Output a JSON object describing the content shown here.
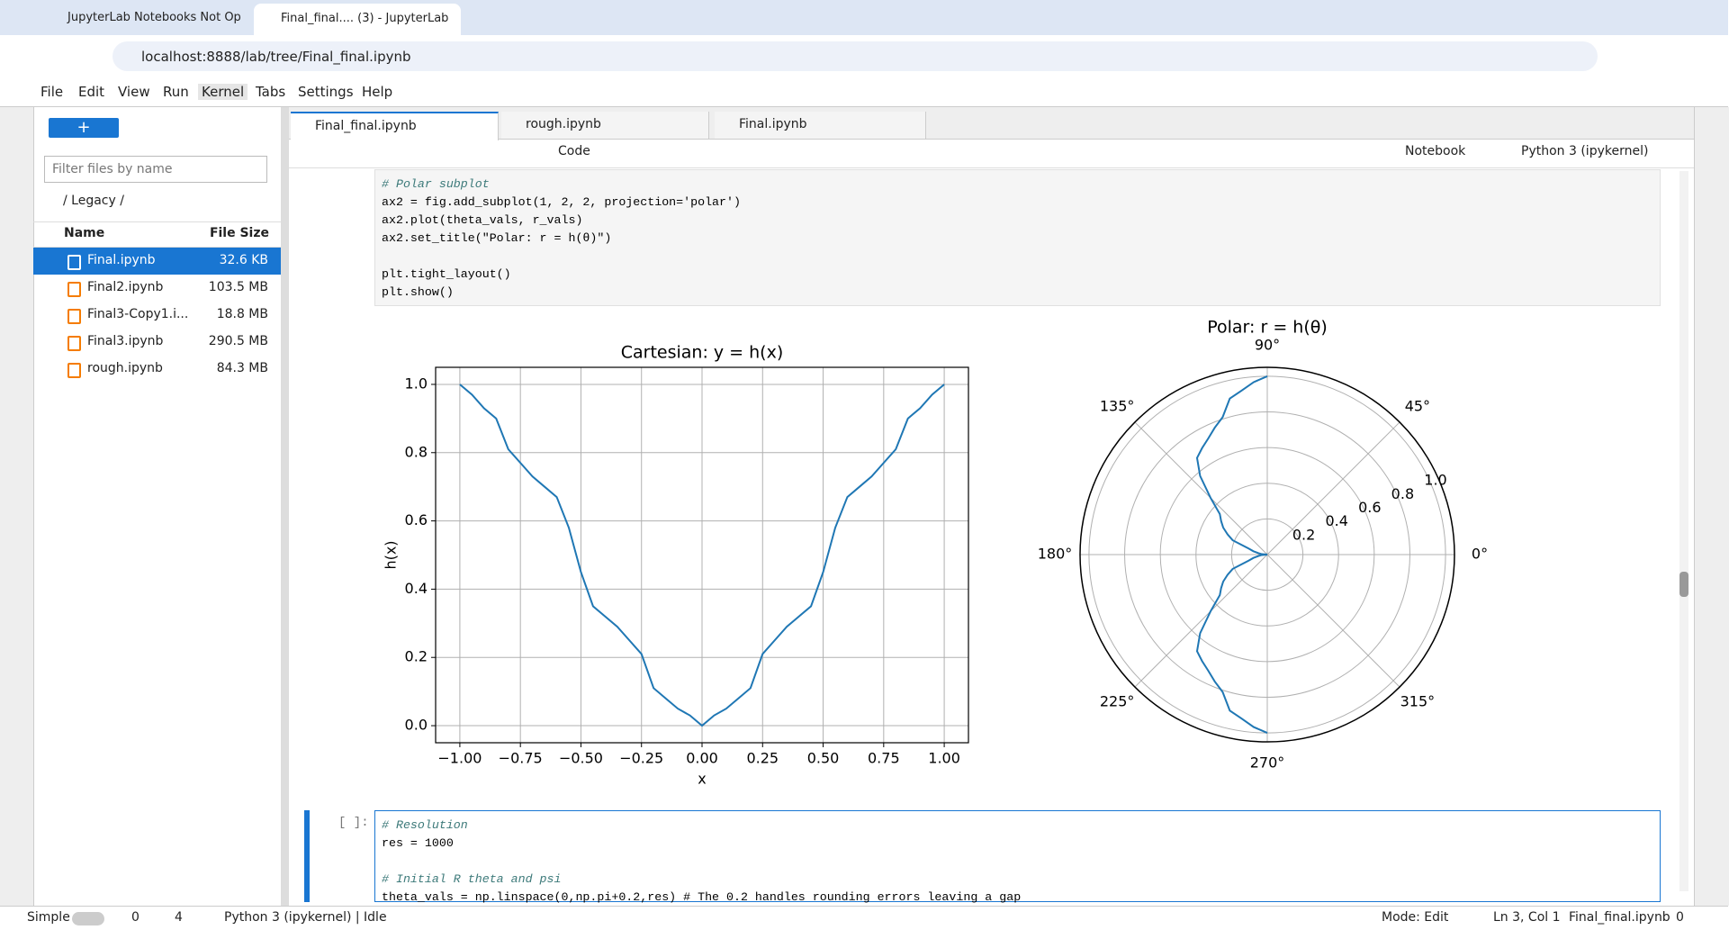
{
  "browser": {
    "tabs": [
      "JupyterLab Notebooks Not Op",
      "Final_final.... (3) - JupyterLab"
    ],
    "url": "localhost:8888/lab/tree/Final_final.ipynb"
  },
  "menu": [
    "File",
    "Edit",
    "View",
    "Run",
    "Kernel",
    "Tabs",
    "Settings",
    "Help"
  ],
  "file_browser": {
    "filter_placeholder": "Filter files by name",
    "breadcrumb": "/ Legacy /",
    "columns": [
      "Name",
      "File Size"
    ],
    "files": [
      {
        "name": "Final.ipynb",
        "size": "32.6 KB"
      },
      {
        "name": "Final2.ipynb",
        "size": "103.5 MB"
      },
      {
        "name": "Final3-Copy1.i...",
        "size": "18.8 MB"
      },
      {
        "name": "Final3.ipynb",
        "size": "290.5 MB"
      },
      {
        "name": "rough.ipynb",
        "size": "84.3 MB"
      }
    ]
  },
  "notebook": {
    "tabs": [
      "Final_final.ipynb",
      "rough.ipynb",
      "Final.ipynb"
    ],
    "cell_type": "Code",
    "notebook_label": "Notebook",
    "kernel": "Python 3 (ipykernel)",
    "cells": [
      {
        "blocks": [
          [
            "# Polar subplot",
            "ax2 = fig.add_subplot(1, 2, 2, projection='polar')",
            "ax2.plot(theta_vals, r_vals)",
            "ax2.set_title(\"Polar: r = h(θ)\")"
          ],
          [
            "plt.tight_layout()",
            "plt.show()"
          ]
        ]
      },
      {
        "prompt": "[ ]:",
        "blocks": [
          [
            "# Resolution",
            "res = 1000"
          ],
          [
            "# Initial R theta and psi",
            "theta_vals = np.linspace(0,np.pi+0.2,res) # The 0.2 handles rounding errors leaving a gap"
          ]
        ]
      }
    ]
  },
  "chart_data": [
    {
      "type": "line",
      "title": "Cartesian: y = h(x)",
      "x_label": "x",
      "y_label": "h(x)",
      "x": [
        -1,
        -0.95,
        -0.9,
        -0.85,
        -0.8,
        -0.75,
        -0.7,
        -0.65,
        -0.6,
        -0.55,
        -0.5,
        -0.45,
        -0.4,
        -0.35,
        -0.3,
        -0.25,
        -0.2,
        -0.15,
        -0.1,
        -0.05,
        0,
        0.05,
        0.1,
        0.15,
        0.2,
        0.25,
        0.3,
        0.35,
        0.4,
        0.45,
        0.5,
        0.55,
        0.6,
        0.65,
        0.7,
        0.75,
        0.8,
        0.85,
        0.9,
        0.95,
        1
      ],
      "series": [
        {
          "color": "#1f77b4",
          "values": [
            1.0,
            0.97,
            0.93,
            0.9,
            0.81,
            0.77,
            0.73,
            0.7,
            0.67,
            0.58,
            0.45,
            0.35,
            0.32,
            0.29,
            0.25,
            0.21,
            0.11,
            0.08,
            0.05,
            0.03,
            0.0,
            0.03,
            0.05,
            0.08,
            0.11,
            0.21,
            0.25,
            0.29,
            0.32,
            0.35,
            0.45,
            0.58,
            0.67,
            0.7,
            0.73,
            0.77,
            0.81,
            0.9,
            0.93,
            0.97,
            1.0
          ]
        }
      ],
      "xlim": [
        -1.1,
        1.1
      ],
      "ylim": [
        -0.05,
        1.05
      ],
      "xticks": [
        {
          "value": -1,
          "label": "−1.00"
        },
        {
          "value": -0.75,
          "label": "−0.75"
        },
        {
          "value": -0.5,
          "label": "−0.50"
        },
        {
          "value": -0.25,
          "label": "−0.25"
        },
        {
          "value": 0,
          "label": "0.00"
        },
        {
          "value": 0.25,
          "label": "0.25"
        },
        {
          "value": 0.5,
          "label": "0.50"
        },
        {
          "value": 0.75,
          "label": "0.75"
        },
        {
          "value": 1,
          "label": "1.00"
        }
      ],
      "yticks": [
        {
          "value": 0,
          "label": "0.0"
        },
        {
          "value": 0.2,
          "label": "0.2"
        },
        {
          "value": 0.4,
          "label": "0.4"
        },
        {
          "value": 0.6,
          "label": "0.6"
        },
        {
          "value": 0.8,
          "label": "0.8"
        },
        {
          "value": 1,
          "label": "1.0"
        }
      ],
      "grid": true
    },
    {
      "type": "polar",
      "title": "Polar: r = h(θ)",
      "series": [
        {
          "color": "#1f77b4",
          "theta": [
            90,
            94.5,
            99,
            103.5,
            108,
            112.5,
            117,
            121.5,
            126,
            130.5,
            135,
            139.5,
            144,
            148.5,
            153,
            157.5,
            162,
            166.5,
            171,
            175.5,
            180,
            184.5,
            189,
            193.5,
            198,
            202.5,
            207,
            211.5,
            216,
            220.5,
            225,
            229.5,
            234,
            238.5,
            243,
            247.5,
            252,
            256.5,
            261,
            265.5,
            270
          ],
          "values": [
            1.0,
            0.97,
            0.93,
            0.9,
            0.81,
            0.77,
            0.73,
            0.7,
            0.67,
            0.58,
            0.45,
            0.35,
            0.32,
            0.29,
            0.25,
            0.21,
            0.11,
            0.08,
            0.05,
            0.03,
            0.0,
            0.03,
            0.05,
            0.08,
            0.11,
            0.21,
            0.25,
            0.29,
            0.32,
            0.35,
            0.45,
            0.58,
            0.67,
            0.7,
            0.73,
            0.77,
            0.81,
            0.9,
            0.93,
            0.97,
            1.0
          ]
        }
      ],
      "rlim": [
        0,
        1.05
      ],
      "rticks": [
        0.2,
        0.4,
        0.6,
        0.8,
        {
          "value": 1,
          "label": "1.0"
        }
      ],
      "thetaticks": [
        {
          "value": 0,
          "label": "0°"
        },
        {
          "value": 45,
          "label": "45°"
        },
        {
          "value": 90,
          "label": "90°"
        },
        {
          "value": 135,
          "label": "135°"
        },
        {
          "value": 180,
          "label": "180°"
        },
        {
          "value": 225,
          "label": "225°"
        },
        {
          "value": 270,
          "label": "270°"
        },
        {
          "value": 315,
          "label": "315°"
        }
      ],
      "grid": true
    }
  ],
  "status_bar": {
    "mode_label": "Simple",
    "terminals": "0",
    "kernels": "4",
    "kernel_status": "Python 3 (ipykernel) | Idle",
    "mode": "Mode: Edit",
    "position": "Ln 3, Col 1",
    "file": "Final_final.ipynb",
    "notifications": "0"
  }
}
